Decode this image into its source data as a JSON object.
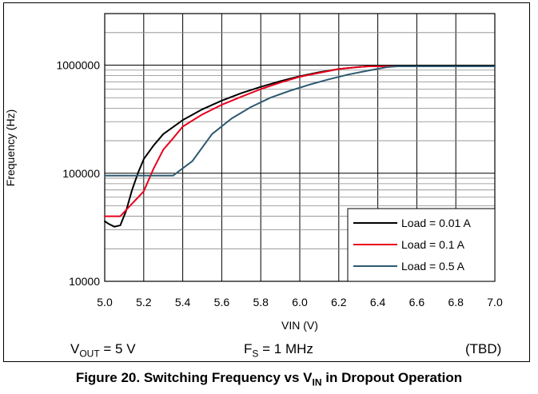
{
  "chart_data": {
    "type": "line",
    "title": "",
    "xlabel": "VIN (V)",
    "ylabel": "Frequency (Hz)",
    "xlim": [
      5.0,
      7.0
    ],
    "ylim": [
      10000,
      3000000
    ],
    "yscale": "log",
    "grid": true,
    "legend_position": "bottom-right",
    "x_ticks": [
      "5.0",
      "5.2",
      "5.4",
      "5.6",
      "5.8",
      "6.0",
      "6.2",
      "6.4",
      "6.6",
      "6.8",
      "7.0"
    ],
    "y_ticks": [
      "10000",
      "100000",
      "1000000"
    ],
    "x_tick_values": [
      5.0,
      5.2,
      5.4,
      5.6,
      5.8,
      6.0,
      6.2,
      6.4,
      6.6,
      6.8,
      7.0
    ],
    "y_tick_values": [
      10000,
      100000,
      1000000
    ],
    "series": [
      {
        "name": "Load = 0.01 A",
        "color": "#000000",
        "points": [
          [
            5.0,
            36000
          ],
          [
            5.02,
            34000
          ],
          [
            5.05,
            32000
          ],
          [
            5.08,
            33000
          ],
          [
            5.11,
            45000
          ],
          [
            5.14,
            70000
          ],
          [
            5.17,
            100000
          ],
          [
            5.2,
            135000
          ],
          [
            5.25,
            180000
          ],
          [
            5.3,
            230000
          ],
          [
            5.4,
            310000
          ],
          [
            5.5,
            390000
          ],
          [
            5.6,
            470000
          ],
          [
            5.7,
            550000
          ],
          [
            5.8,
            630000
          ],
          [
            5.9,
            710000
          ],
          [
            6.0,
            790000
          ],
          [
            6.1,
            860000
          ],
          [
            6.2,
            920000
          ],
          [
            6.3,
            960000
          ],
          [
            6.35,
            975000
          ],
          [
            6.4,
            975000
          ],
          [
            7.0,
            975000
          ]
        ]
      },
      {
        "name": "Load = 0.1 A",
        "color": "#e8001c",
        "points": [
          [
            5.0,
            40000
          ],
          [
            5.08,
            40000
          ],
          [
            5.13,
            50000
          ],
          [
            5.2,
            68000
          ],
          [
            5.25,
            110000
          ],
          [
            5.3,
            165000
          ],
          [
            5.35,
            210000
          ],
          [
            5.4,
            270000
          ],
          [
            5.5,
            350000
          ],
          [
            5.6,
            430000
          ],
          [
            5.7,
            510000
          ],
          [
            5.8,
            600000
          ],
          [
            5.9,
            690000
          ],
          [
            6.0,
            780000
          ],
          [
            6.1,
            850000
          ],
          [
            6.2,
            920000
          ],
          [
            6.3,
            960000
          ],
          [
            6.35,
            975000
          ],
          [
            6.4,
            975000
          ],
          [
            7.0,
            975000
          ]
        ]
      },
      {
        "name": "Load = 0.5 A",
        "color": "#2e5a70",
        "points": [
          [
            5.0,
            95000
          ],
          [
            5.35,
            95000
          ],
          [
            5.45,
            130000
          ],
          [
            5.55,
            230000
          ],
          [
            5.65,
            320000
          ],
          [
            5.75,
            410000
          ],
          [
            5.85,
            500000
          ],
          [
            5.95,
            580000
          ],
          [
            6.05,
            660000
          ],
          [
            6.15,
            740000
          ],
          [
            6.25,
            820000
          ],
          [
            6.35,
            890000
          ],
          [
            6.45,
            960000
          ],
          [
            6.5,
            975000
          ],
          [
            7.0,
            975000
          ]
        ]
      }
    ]
  },
  "conditions": {
    "vout_symbol": "V",
    "vout_sub": "OUT",
    "vout_value": " = 5 V",
    "fs_symbol": "F",
    "fs_sub": "S",
    "fs_value": " = 1 MHz",
    "status": "(TBD)"
  },
  "caption": {
    "text": "Figure 20. Switching Frequency vs V",
    "sub": "IN",
    "suffix": " in Dropout Operation"
  }
}
